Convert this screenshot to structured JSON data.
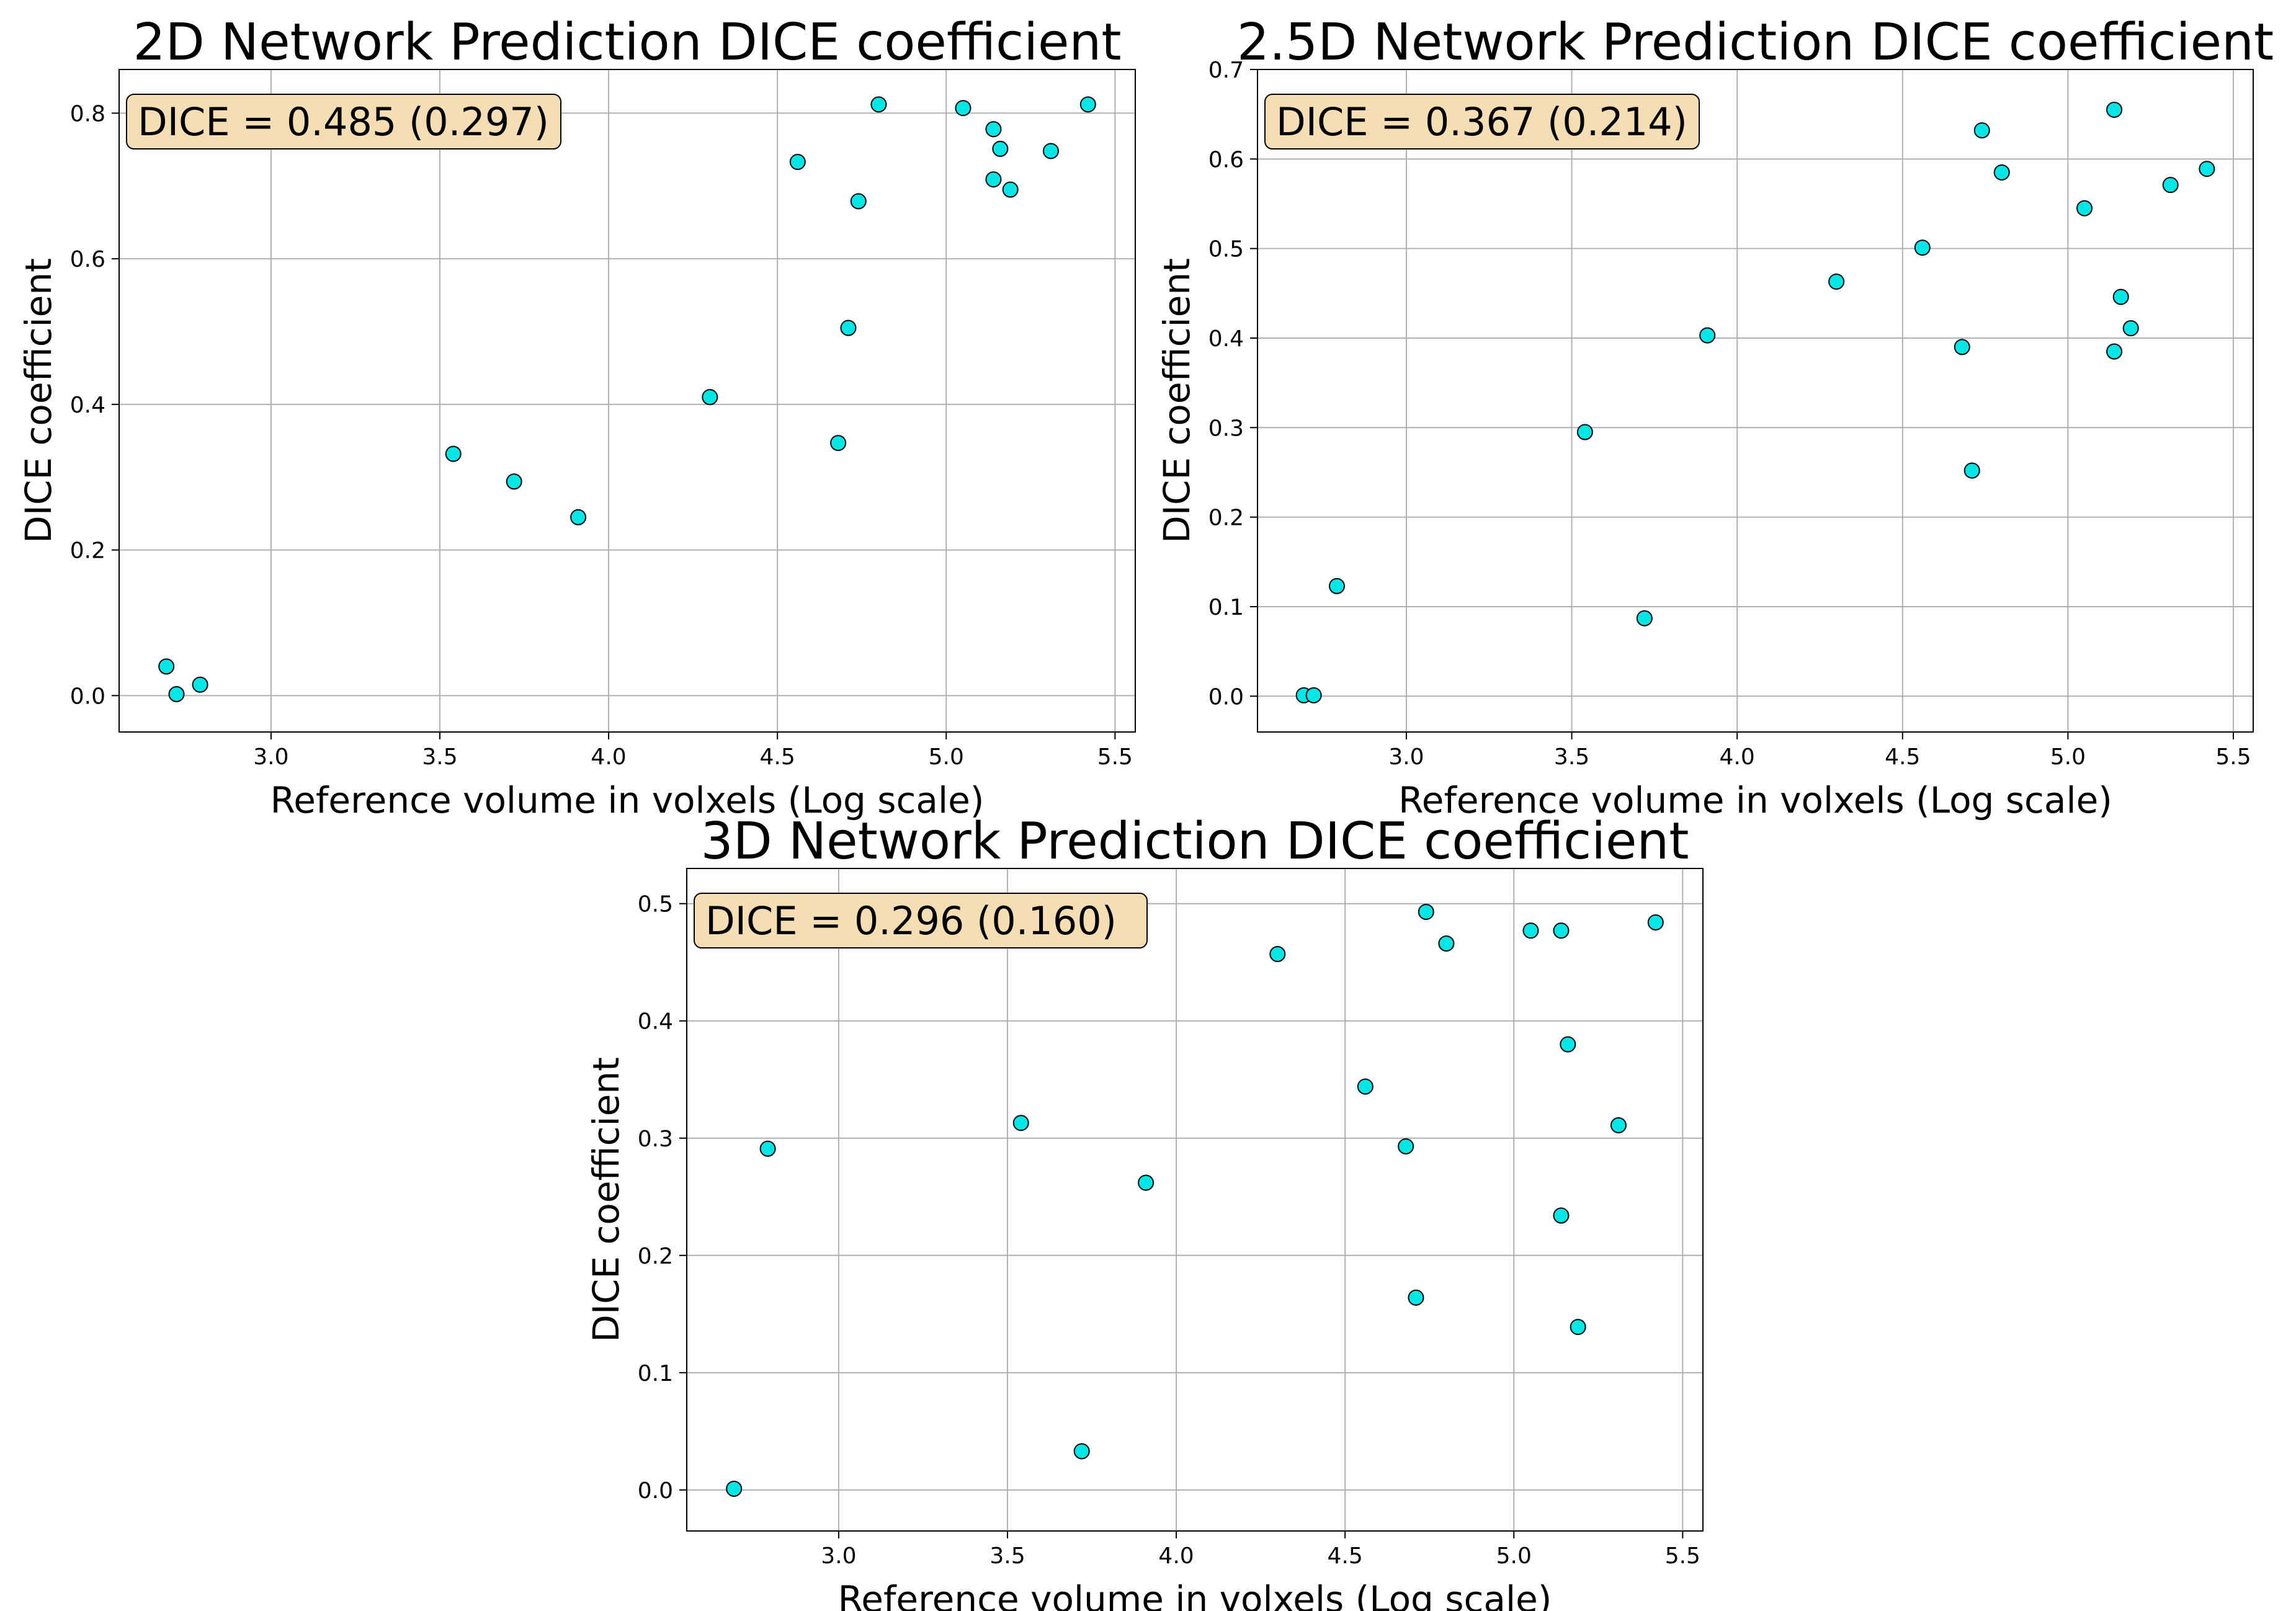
{
  "chart_data": [
    {
      "type": "scatter",
      "title": "2D Network Prediction DICE coefficient",
      "xlabel": "Reference volume in volxels (Log scale)",
      "ylabel": "DICE coefficient",
      "xlim": [
        2.55,
        5.56
      ],
      "ylim": [
        -0.05,
        0.86
      ],
      "xticks": [
        3.0,
        3.5,
        4.0,
        4.5,
        5.0,
        5.5
      ],
      "xtick_labels": [
        "3.0",
        "3.5",
        "4.0",
        "4.5",
        "5.0",
        "5.5"
      ],
      "yticks": [
        0.0,
        0.2,
        0.4,
        0.6,
        0.8
      ],
      "ytick_labels": [
        "0.0",
        "0.2",
        "0.4",
        "0.6",
        "0.8"
      ],
      "grid": true,
      "annotation": "DICE = 0.485 (0.297)",
      "point_color": "#00e5e5",
      "annotation_color": "#f5deb3",
      "x": [
        2.69,
        2.72,
        2.79,
        3.54,
        3.72,
        3.91,
        4.3,
        4.56,
        4.68,
        4.71,
        4.74,
        4.8,
        5.05,
        5.14,
        5.14,
        5.16,
        5.19,
        5.31,
        5.42
      ],
      "y": [
        0.04,
        0.002,
        0.015,
        0.332,
        0.294,
        0.245,
        0.41,
        0.733,
        0.347,
        0.505,
        0.679,
        0.812,
        0.807,
        0.778,
        0.709,
        0.751,
        0.695,
        0.748,
        0.812
      ]
    },
    {
      "type": "scatter",
      "title": "2.5D Network Prediction DICE coefficient",
      "xlabel": "Reference volume in volxels (Log scale)",
      "ylabel": "DICE coefficient",
      "xlim": [
        2.55,
        5.56
      ],
      "ylim": [
        -0.04,
        0.7
      ],
      "xticks": [
        3.0,
        3.5,
        4.0,
        4.5,
        5.0,
        5.5
      ],
      "xtick_labels": [
        "3.0",
        "3.5",
        "4.0",
        "4.5",
        "5.0",
        "5.5"
      ],
      "yticks": [
        0.0,
        0.1,
        0.2,
        0.3,
        0.4,
        0.5,
        0.6,
        0.7
      ],
      "ytick_labels": [
        "0.0",
        "0.1",
        "0.2",
        "0.3",
        "0.4",
        "0.5",
        "0.6",
        "0.7"
      ],
      "grid": true,
      "annotation": "DICE = 0.367 (0.214)",
      "point_color": "#00e5e5",
      "annotation_color": "#f5deb3",
      "x": [
        2.69,
        2.72,
        2.79,
        3.54,
        3.72,
        3.91,
        4.3,
        4.56,
        4.68,
        4.71,
        4.74,
        4.8,
        5.05,
        5.14,
        5.14,
        5.16,
        5.19,
        5.31,
        5.42
      ],
      "y": [
        0.001,
        0.001,
        0.123,
        0.295,
        0.087,
        0.403,
        0.463,
        0.501,
        0.39,
        0.252,
        0.632,
        0.585,
        0.545,
        0.655,
        0.385,
        0.446,
        0.411,
        0.571,
        0.589
      ]
    },
    {
      "type": "scatter",
      "title": "3D Network Prediction DICE coefficient",
      "xlabel": "Reference volume in volxels (Log scale)",
      "ylabel": "DICE coefficient",
      "xlim": [
        2.55,
        5.56
      ],
      "ylim": [
        -0.035,
        0.53
      ],
      "xticks": [
        3.0,
        3.5,
        4.0,
        4.5,
        5.0,
        5.5
      ],
      "xtick_labels": [
        "3.0",
        "3.5",
        "4.0",
        "4.5",
        "5.0",
        "5.5"
      ],
      "yticks": [
        0.0,
        0.1,
        0.2,
        0.3,
        0.4,
        0.5
      ],
      "ytick_labels": [
        "0.0",
        "0.1",
        "0.2",
        "0.3",
        "0.4",
        "0.5"
      ],
      "grid": true,
      "annotation": "DICE = 0.296 (0.160)",
      "point_color": "#00e5e5",
      "annotation_color": "#f5deb3",
      "x": [
        2.69,
        2.79,
        3.54,
        3.72,
        3.91,
        4.3,
        4.56,
        4.68,
        4.71,
        4.74,
        4.8,
        5.05,
        5.14,
        5.14,
        5.16,
        5.19,
        5.31,
        5.42
      ],
      "y": [
        0.001,
        0.291,
        0.313,
        0.033,
        0.262,
        0.457,
        0.344,
        0.293,
        0.164,
        0.493,
        0.466,
        0.477,
        0.234,
        0.477,
        0.38,
        0.139,
        0.311,
        0.484
      ]
    }
  ]
}
